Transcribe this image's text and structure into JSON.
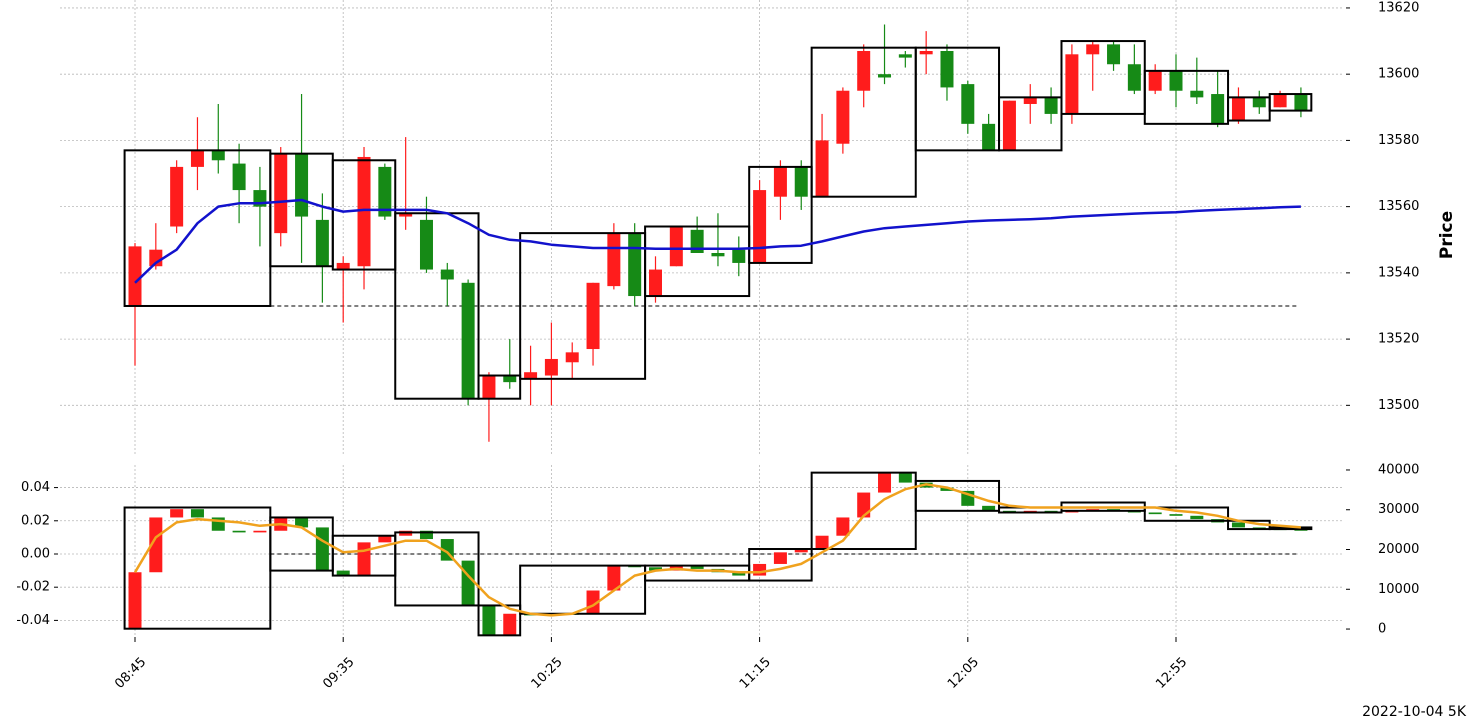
{
  "chart_data": [
    {
      "type": "candlestick",
      "ylabel": "Price",
      "categories": [
        "08:45",
        null,
        null,
        null,
        null,
        null,
        null,
        null,
        null,
        null,
        "09:35",
        null,
        null,
        null,
        null,
        null,
        null,
        null,
        null,
        null,
        "10:25",
        null,
        null,
        null,
        null,
        null,
        null,
        null,
        null,
        null,
        "11:15",
        null,
        null,
        null,
        null,
        null,
        null,
        null,
        null,
        null,
        "12:05",
        null,
        null,
        null,
        null,
        null,
        null,
        null,
        null,
        null,
        "12:55",
        null,
        null,
        null,
        null,
        null,
        null
      ],
      "open": [
        13530,
        13542,
        13554,
        13572,
        13577,
        13573,
        13565,
        13552,
        13576,
        13556,
        13541,
        13542,
        13572,
        13557,
        13556,
        13541,
        13537,
        13502,
        13509,
        13508,
        13509,
        13513,
        13517,
        13536,
        13552,
        13533,
        13542,
        13553,
        13546,
        13547,
        13543,
        13563,
        13572,
        13563,
        13579,
        13595,
        13600,
        13606,
        13606,
        13607,
        13597,
        13585,
        13577,
        13591,
        13593,
        13588,
        13606,
        13609,
        13603,
        13595,
        13601,
        13595,
        13594,
        13586,
        13593,
        13590,
        13594
      ],
      "high": [
        13549,
        13555,
        13574,
        13587,
        13591,
        13579,
        13572,
        13578,
        13594,
        13564,
        13545,
        13578,
        13573,
        13581,
        13563,
        13543,
        13538,
        13510,
        13520,
        13518,
        13525,
        13519,
        13537,
        13555,
        13555,
        13545,
        13554,
        13557,
        13558,
        13551,
        13568,
        13574,
        13574,
        13588,
        13596,
        13609,
        13615,
        13607,
        13613,
        13609,
        13598,
        13588,
        13592,
        13597,
        13596,
        13609,
        13610,
        13610,
        13609,
        13603,
        13606,
        13605,
        13601,
        13596,
        13595,
        13595,
        13596
      ],
      "low": [
        13512,
        13541,
        13552,
        13565,
        13570,
        13555,
        13548,
        13548,
        13543,
        13531,
        13525,
        13535,
        13556,
        13553,
        13540,
        13530,
        13500,
        13489,
        13505,
        13500,
        13500,
        13508,
        13512,
        13535,
        13530,
        13531,
        13542,
        13546,
        13542,
        13539,
        13543,
        13556,
        13559,
        13563,
        13576,
        13590,
        13597,
        13602,
        13600,
        13592,
        13582,
        13577,
        13577,
        13585,
        13585,
        13585,
        13595,
        13601,
        13594,
        13594,
        13590,
        13591,
        13584,
        13585,
        13588,
        13590,
        13587
      ],
      "close": [
        13548,
        13547,
        13572,
        13577,
        13574,
        13565,
        13560,
        13576,
        13557,
        13542,
        13543,
        13575,
        13557,
        13558,
        13541,
        13538,
        13502,
        13509,
        13507,
        13510,
        13514,
        13516,
        13537,
        13552,
        13533,
        13541,
        13554,
        13546,
        13545,
        13543,
        13565,
        13572,
        13563,
        13580,
        13595,
        13607,
        13599,
        13605,
        13607,
        13596,
        13585,
        13577,
        13592,
        13593,
        13588,
        13606,
        13609,
        13603,
        13595,
        13601,
        13595,
        13593,
        13585,
        13593,
        13590,
        13594,
        13589
      ],
      "up_color": "#ff1c1c",
      "down_color": "#168a16",
      "box_color": "#000000",
      "boxes": [
        {
          "start": 0,
          "end": 6,
          "low": 13530,
          "high": 13577
        },
        {
          "start": 7,
          "end": 9,
          "low": 13542,
          "high": 13576
        },
        {
          "start": 10,
          "end": 12,
          "low": 13541,
          "high": 13574
        },
        {
          "start": 13,
          "end": 16,
          "low": 13502,
          "high": 13558
        },
        {
          "start": 17,
          "end": 18,
          "low": 13502,
          "high": 13509
        },
        {
          "start": 19,
          "end": 24,
          "low": 13508,
          "high": 13552
        },
        {
          "start": 25,
          "end": 29,
          "low": 13533,
          "high": 13554
        },
        {
          "start": 30,
          "end": 32,
          "low": 13543,
          "high": 13572
        },
        {
          "start": 33,
          "end": 37,
          "low": 13563,
          "high": 13608
        },
        {
          "start": 38,
          "end": 41,
          "low": 13577,
          "high": 13608
        },
        {
          "start": 42,
          "end": 44,
          "low": 13577,
          "high": 13593
        },
        {
          "start": 45,
          "end": 48,
          "low": 13588,
          "high": 13610
        },
        {
          "start": 49,
          "end": 52,
          "low": 13585,
          "high": 13601
        },
        {
          "start": 53,
          "end": 54,
          "low": 13586,
          "high": 13593
        },
        {
          "start": 55,
          "end": 56,
          "low": 13589,
          "high": 13594
        }
      ],
      "hline": 13530,
      "lines": [
        {
          "color": "#1212cc",
          "values": [
            13537,
            13543,
            13547,
            13555,
            13560,
            13561,
            13561,
            13561.5,
            13562,
            13560,
            13558.5,
            13559,
            13559,
            13559,
            13559,
            13558,
            13555,
            13551.5,
            13550,
            13549.5,
            13548.5,
            13548,
            13547.5,
            13547.5,
            13547.5,
            13547.3,
            13547.3,
            13547.3,
            13547.3,
            13547.3,
            13547.5,
            13548,
            13548.2,
            13549.5,
            13551,
            13552.5,
            13553.5,
            13554,
            13554.5,
            13555,
            13555.5,
            13555.8,
            13556,
            13556.2,
            13556.5,
            13557,
            13557.3,
            13557.6,
            13557.9,
            13558.1,
            13558.3,
            13558.7,
            13559,
            13559.3,
            13559.5,
            13559.8,
            13560
          ]
        }
      ],
      "ylim": [
        13485,
        13622.4
      ],
      "yticks": [
        13500,
        13520,
        13540,
        13560,
        13580,
        13600,
        13620
      ],
      "grid": true
    },
    {
      "type": "candlestick",
      "open": [
        -0.045,
        -0.011,
        0.022,
        0.027,
        0.022,
        0.014,
        0.013,
        0.014,
        0.022,
        0.016,
        -0.01,
        -0.013,
        0.007,
        0.011,
        0.014,
        0.009,
        -0.004,
        -0.031,
        -0.049,
        -0.036,
        -0.037,
        -0.036,
        -0.036,
        -0.022,
        -0.007,
        -0.008,
        -0.01,
        -0.007,
        -0.009,
        -0.011,
        -0.013,
        -0.006,
        0.001,
        0.003,
        0.011,
        0.022,
        0.037,
        0.049,
        0.043,
        0.04,
        0.038,
        0.029,
        0.026,
        0.025,
        0.026,
        0.025,
        0.026,
        0.027,
        0.026,
        0.025,
        0.024,
        0.023,
        0.021,
        0.019,
        0.016,
        0.015,
        0.015
      ],
      "close": [
        -0.011,
        0.022,
        0.027,
        0.022,
        0.014,
        0.013,
        0.014,
        0.022,
        0.016,
        -0.01,
        -0.013,
        0.007,
        0.011,
        0.014,
        0.009,
        -0.004,
        -0.031,
        -0.049,
        -0.036,
        -0.037,
        -0.036,
        -0.0365,
        -0.022,
        -0.007,
        -0.008,
        -0.01,
        -0.007,
        -0.009,
        -0.011,
        -0.013,
        -0.006,
        0.001,
        0.003,
        0.011,
        0.022,
        0.037,
        0.049,
        0.043,
        0.04,
        0.038,
        0.029,
        0.026,
        0.025,
        0.026,
        0.025,
        0.026,
        0.027,
        0.026,
        0.025,
        0.024,
        0.023,
        0.021,
        0.019,
        0.016,
        0.015,
        0.0145,
        0.014
      ],
      "up_color": "#ff1c1c",
      "down_color": "#168a16",
      "box_color": "#000000",
      "boxes": [
        {
          "start": 0,
          "end": 6,
          "low": -0.045,
          "high": 0.028
        },
        {
          "start": 7,
          "end": 9,
          "low": -0.01,
          "high": 0.022
        },
        {
          "start": 10,
          "end": 12,
          "low": -0.013,
          "high": 0.011
        },
        {
          "start": 13,
          "end": 16,
          "low": -0.031,
          "high": 0.013
        },
        {
          "start": 17,
          "end": 18,
          "low": -0.049,
          "high": -0.031
        },
        {
          "start": 19,
          "end": 24,
          "low": -0.036,
          "high": -0.007
        },
        {
          "start": 25,
          "end": 29,
          "low": -0.016,
          "high": -0.007
        },
        {
          "start": 30,
          "end": 32,
          "low": -0.016,
          "high": 0.003
        },
        {
          "start": 33,
          "end": 37,
          "low": 0.003,
          "high": 0.049
        },
        {
          "start": 38,
          "end": 41,
          "low": 0.026,
          "high": 0.044
        },
        {
          "start": 42,
          "end": 44,
          "low": 0.025,
          "high": 0.028
        },
        {
          "start": 45,
          "end": 48,
          "low": 0.026,
          "high": 0.031
        },
        {
          "start": 49,
          "end": 52,
          "low": 0.02,
          "high": 0.028
        },
        {
          "start": 53,
          "end": 54,
          "low": 0.015,
          "high": 0.02
        },
        {
          "start": 55,
          "end": 56,
          "low": 0.015,
          "high": 0.016
        }
      ],
      "hline": 0,
      "lines": [
        {
          "color": "#f0a21e",
          "values": [
            -0.011,
            0.01,
            0.019,
            0.021,
            0.02,
            0.019,
            0.017,
            0.018,
            0.016,
            0.008,
            0.001,
            0.002,
            0.005,
            0.008,
            0.008,
            0.001,
            -0.013,
            -0.026,
            -0.033,
            -0.036,
            -0.037,
            -0.036,
            -0.031,
            -0.022,
            -0.013,
            -0.01,
            -0.009,
            -0.01,
            -0.01,
            -0.011,
            -0.011,
            -0.009,
            -0.006,
            0.001,
            0.008,
            0.023,
            0.033,
            0.039,
            0.042,
            0.04,
            0.036,
            0.032,
            0.029,
            0.028,
            0.028,
            0.028,
            0.028,
            0.028,
            0.028,
            0.028,
            0.026,
            0.025,
            0.023,
            0.02,
            0.018,
            0.017,
            0.016
          ]
        }
      ],
      "ylim": [
        -0.05,
        0.0536
      ],
      "yticks": [
        -0.04,
        -0.02,
        {
          "value": 0,
          "label": "0.00"
        },
        0.02,
        0.04
      ],
      "y2lim": [
        -2000,
        41250
      ],
      "y2ticks": [
        0,
        10000,
        20000,
        30000,
        40000
      ],
      "grid": true,
      "annotation": "2022-10-04 5K"
    }
  ]
}
